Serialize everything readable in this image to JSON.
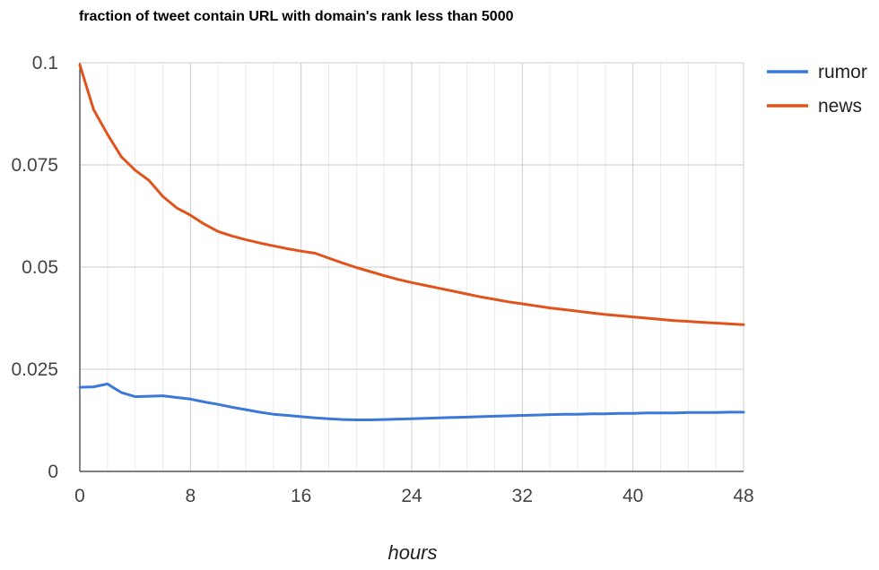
{
  "chart_data": {
    "type": "line",
    "title": "fraction of tweet contain URL with domain's rank less than 5000",
    "xlabel": "hours",
    "ylabel": "",
    "xlim": [
      0,
      48
    ],
    "ylim": [
      0,
      0.1
    ],
    "xticks": [
      0,
      8,
      16,
      24,
      32,
      40,
      48
    ],
    "xtick_labels": [
      "0",
      "8",
      "16",
      "24",
      "32",
      "40",
      "48"
    ],
    "yticks": [
      0,
      0.025,
      0.05,
      0.075,
      0.1
    ],
    "ytick_labels": [
      "0",
      "0.025",
      "0.05",
      "0.075",
      "0.1"
    ],
    "grid": true,
    "legend_position": "right",
    "x": [
      0,
      1,
      2,
      3,
      4,
      5,
      6,
      7,
      8,
      9,
      10,
      11,
      12,
      13,
      14,
      15,
      16,
      17,
      18,
      19,
      20,
      21,
      22,
      23,
      24,
      25,
      26,
      27,
      28,
      29,
      30,
      31,
      32,
      33,
      34,
      35,
      36,
      37,
      38,
      39,
      40,
      41,
      42,
      43,
      44,
      45,
      46,
      47,
      48
    ],
    "series": [
      {
        "name": "rumor",
        "color": "#3c78d8",
        "values": [
          0.0206,
          0.0207,
          0.0214,
          0.0193,
          0.0183,
          0.0184,
          0.0185,
          0.0181,
          0.0177,
          0.017,
          0.0164,
          0.0157,
          0.0151,
          0.0145,
          0.014,
          0.0137,
          0.0134,
          0.0131,
          0.0129,
          0.0127,
          0.0126,
          0.0126,
          0.0127,
          0.0128,
          0.0129,
          0.013,
          0.0131,
          0.0132,
          0.0133,
          0.0134,
          0.0135,
          0.0136,
          0.0137,
          0.0138,
          0.0139,
          0.014,
          0.014,
          0.0141,
          0.0141,
          0.0142,
          0.0142,
          0.0143,
          0.0143,
          0.0143,
          0.0144,
          0.0144,
          0.0144,
          0.0145,
          0.0145
        ]
      },
      {
        "name": "news",
        "color": "#e0531c",
        "values": [
          0.0995,
          0.0885,
          0.0825,
          0.077,
          0.0737,
          0.0712,
          0.0673,
          0.0645,
          0.0627,
          0.0605,
          0.0587,
          0.0576,
          0.0567,
          0.0559,
          0.0552,
          0.0545,
          0.0539,
          0.0534,
          0.0522,
          0.051,
          0.0499,
          0.0489,
          0.0479,
          0.047,
          0.0462,
          0.0455,
          0.0448,
          0.0441,
          0.0434,
          0.0427,
          0.0421,
          0.0415,
          0.041,
          0.0405,
          0.04,
          0.0396,
          0.0392,
          0.0388,
          0.0384,
          0.0381,
          0.0378,
          0.0375,
          0.0372,
          0.0369,
          0.0367,
          0.0365,
          0.0363,
          0.0361,
          0.0359
        ]
      }
    ]
  }
}
